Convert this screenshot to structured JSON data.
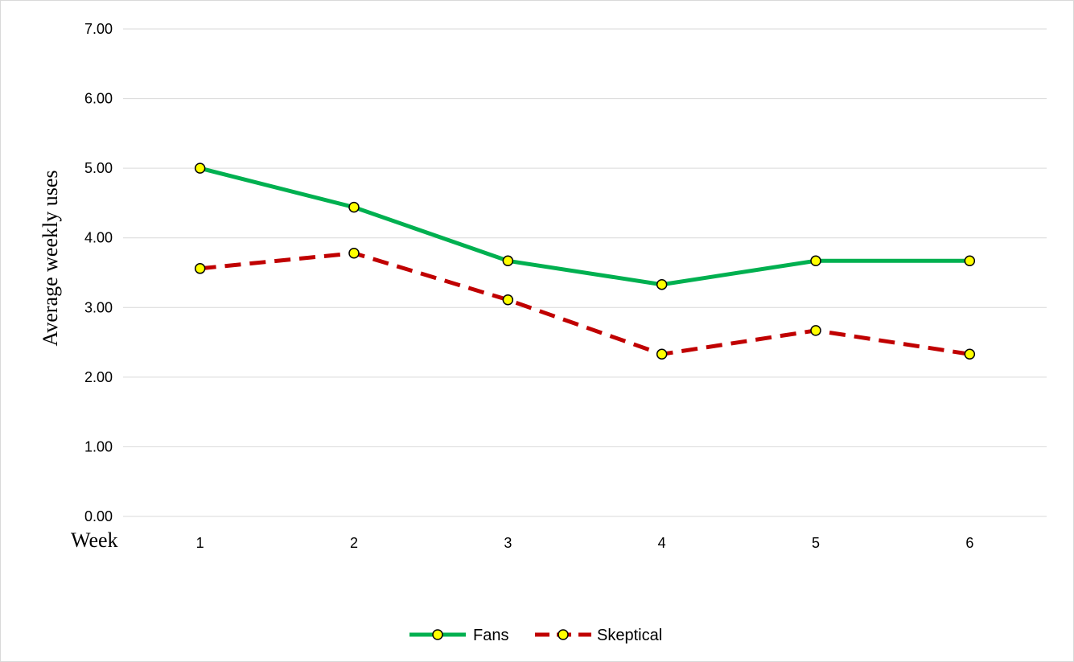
{
  "chart_data": {
    "type": "line",
    "title": "",
    "xlabel": "Week",
    "ylabel": "Average weekly uses",
    "categories": [
      "1",
      "2",
      "3",
      "4",
      "5",
      "6"
    ],
    "ylim": [
      0,
      7
    ],
    "yticks": [
      "0.00",
      "1.00",
      "2.00",
      "3.00",
      "4.00",
      "5.00",
      "6.00",
      "7.00"
    ],
    "grid": true,
    "legend_position": "bottom",
    "series": [
      {
        "name": "Fans",
        "values": [
          5.0,
          4.44,
          3.67,
          3.33,
          3.67,
          3.67
        ],
        "color": "#00b050",
        "line_style": "solid",
        "marker_color": "#ffff00"
      },
      {
        "name": "Skeptical",
        "values": [
          3.56,
          3.78,
          3.11,
          2.33,
          2.67,
          2.33
        ],
        "color": "#c00000",
        "line_style": "dashed",
        "marker_color": "#ffff00"
      }
    ]
  }
}
